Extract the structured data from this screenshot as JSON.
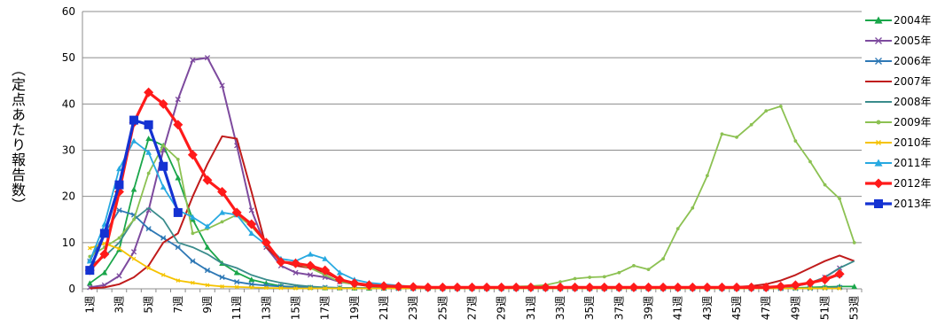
{
  "chart_data": {
    "type": "line",
    "ylabel": "（定点あたり報告数）",
    "ylim": [
      0,
      60
    ],
    "yticks": [
      0,
      10,
      20,
      30,
      40,
      50,
      60
    ],
    "grid": true,
    "legend_position": "right",
    "categories": [
      "1週",
      "2週",
      "3週",
      "4週",
      "5週",
      "6週",
      "7週",
      "8週",
      "9週",
      "10週",
      "11週",
      "12週",
      "13週",
      "14週",
      "15週",
      "16週",
      "17週",
      "18週",
      "19週",
      "20週",
      "21週",
      "22週",
      "23週",
      "24週",
      "25週",
      "26週",
      "27週",
      "28週",
      "29週",
      "30週",
      "31週",
      "32週",
      "33週",
      "34週",
      "35週",
      "36週",
      "37週",
      "38週",
      "39週",
      "40週",
      "41週",
      "42週",
      "43週",
      "44週",
      "45週",
      "46週",
      "47週",
      "48週",
      "49週",
      "50週",
      "51週",
      "52週",
      "53週"
    ],
    "tick_labels": [
      "1週",
      "3週",
      "5週",
      "7週",
      "9週",
      "11週",
      "13週",
      "15週",
      "17週",
      "19週",
      "21週",
      "23週",
      "25週",
      "27週",
      "29週",
      "31週",
      "33週",
      "35週",
      "37週",
      "39週",
      "41週",
      "43週",
      "45週",
      "47週",
      "49週",
      "51週",
      "53週"
    ],
    "series": [
      {
        "name": "2004年",
        "color": "#1aa64a",
        "marker": "triangle",
        "values": [
          1.2,
          3.5,
          8.5,
          21.5,
          32.5,
          31,
          24,
          15,
          9,
          5.5,
          3.5,
          2,
          1.2,
          0.6,
          0.4,
          0.3,
          0.2,
          0.2,
          0.15,
          0.1,
          0.1,
          0.1,
          0.1,
          0.1,
          0.1,
          0.1,
          0.1,
          0.1,
          0.1,
          0.1,
          0.1,
          0.1,
          0.1,
          0.1,
          0.1,
          0.1,
          0.1,
          0.1,
          0.1,
          0.1,
          0.1,
          0.1,
          0.1,
          0.1,
          0.1,
          0.1,
          0.1,
          0.1,
          0.2,
          0.3,
          0.4,
          0.5,
          0.5
        ]
      },
      {
        "name": "2005年",
        "color": "#7d4a9e",
        "marker": "x",
        "values": [
          0.3,
          0.8,
          2.8,
          8,
          17,
          30,
          41,
          49.5,
          50,
          44,
          31,
          17,
          9,
          5,
          3.5,
          3,
          2.5,
          1.5,
          1,
          0.6,
          0.4,
          0.3,
          0.2,
          0.15,
          0.1,
          0.1,
          0.1,
          0.1,
          0.1,
          0.1,
          0.1,
          0.1,
          0.1,
          0.1,
          0.1,
          0.1,
          0.1,
          0.1,
          0.1,
          0.1,
          0.1,
          0.1,
          0.1,
          0.1,
          0.1,
          0.1,
          0.1,
          0.3,
          0.6,
          1.2,
          2.5,
          4.5,
          null
        ]
      },
      {
        "name": "2006年",
        "color": "#2e78b5",
        "marker": "star",
        "values": [
          6,
          12,
          17,
          16,
          13,
          11,
          9,
          6,
          4,
          2.5,
          1.5,
          1,
          0.7,
          0.5,
          0.4,
          0.3,
          0.3,
          0.2,
          0.2,
          0.2,
          0.15,
          0.1,
          0.1,
          0.1,
          0.1,
          0.1,
          0.1,
          0.1,
          0.1,
          0.1,
          0.1,
          0.1,
          0.1,
          0.1,
          0.1,
          0.1,
          0.1,
          0.1,
          0.1,
          0.1,
          0.1,
          0.1,
          0.1,
          0.1,
          0.1,
          0.1,
          0.1,
          0.1,
          0.1,
          0.1,
          0.2,
          0.3,
          null
        ]
      },
      {
        "name": "2007年",
        "color": "#c01b1b",
        "marker": "none",
        "values": [
          0.1,
          0.3,
          1,
          2.5,
          5,
          10,
          12,
          20,
          27,
          33,
          32.5,
          21,
          9,
          6,
          5,
          4.5,
          3.5,
          2,
          1,
          0.6,
          0.4,
          0.3,
          0.2,
          0.15,
          0.1,
          0.1,
          0.1,
          0.1,
          0.1,
          0.1,
          0.1,
          0.1,
          0.1,
          0.1,
          0.1,
          0.1,
          0.1,
          0.1,
          0.1,
          0.1,
          0.1,
          0.2,
          0.3,
          0.3,
          0.4,
          0.6,
          1,
          1.8,
          3,
          4.5,
          6,
          7.2,
          6
        ]
      },
      {
        "name": "2008年",
        "color": "#3a8c8c",
        "marker": "none",
        "values": [
          5,
          7,
          10,
          15,
          17.5,
          15,
          10,
          9,
          7.5,
          5.5,
          4.5,
          3,
          2,
          1.3,
          0.8,
          0.5,
          0.3,
          0.2,
          0.2,
          0.15,
          0.1,
          0.1,
          0.1,
          0.1,
          0.1,
          0.1,
          0.1,
          0.1,
          0.1,
          0.1,
          0.1,
          0.1,
          0.1,
          0.1,
          0.1,
          0.1,
          0.1,
          0.1,
          0.1,
          0.1,
          0.1,
          0.1,
          0.1,
          0.1,
          0.1,
          0.1,
          0.2,
          0.3,
          0.6,
          1.3,
          2.5,
          4.5,
          6
        ]
      },
      {
        "name": "2009年",
        "color": "#8cc152",
        "marker": "circle",
        "values": [
          7,
          9,
          11,
          15,
          25,
          31,
          28,
          12,
          13,
          14.5,
          16,
          13.5,
          10,
          6,
          5.5,
          4.5,
          3,
          1.5,
          1,
          0.8,
          0.6,
          0.5,
          0.5,
          0.4,
          0.4,
          0.4,
          0.4,
          0.4,
          0.4,
          0.5,
          0.6,
          0.8,
          1.5,
          2.2,
          2.5,
          2.6,
          3.5,
          5,
          4.2,
          6.5,
          13,
          17.5,
          24.5,
          33.5,
          32.8,
          35.5,
          38.5,
          39.5,
          32,
          27.5,
          22.5,
          19.5,
          10
        ]
      },
      {
        "name": "2010年",
        "color": "#f5c300",
        "marker": "small-x",
        "values": [
          8.8,
          9.8,
          8.7,
          6.5,
          4.5,
          3,
          1.8,
          1.3,
          0.8,
          0.5,
          0.4,
          0.3,
          0.2,
          0.15,
          0.1,
          0.1,
          0.1,
          0.1,
          0.1,
          0.1,
          0.1,
          0.1,
          0.1,
          0.1,
          0.1,
          0.1,
          0.1,
          0.1,
          0.1,
          0.1,
          0.1,
          0.1,
          0.1,
          0.1,
          0.1,
          0.1,
          0.1,
          0.1,
          0.1,
          0.1,
          0.1,
          0.1,
          0.1,
          0.1,
          0.1,
          0.1,
          0.1,
          0.1,
          0.1,
          0.1,
          0.1,
          0.1,
          null
        ]
      },
      {
        "name": "2011年",
        "color": "#27a9e1",
        "marker": "triangle",
        "values": [
          6,
          14,
          26,
          32,
          29.5,
          22,
          17,
          15.5,
          13.5,
          16.5,
          16,
          12,
          9.5,
          6.5,
          6,
          7.5,
          6.5,
          3.5,
          2,
          1.3,
          1,
          0.7,
          0.5,
          0.3,
          0.2,
          0.2,
          0.2,
          0.2,
          0.2,
          0.2,
          0.2,
          0.2,
          0.2,
          0.2,
          0.2,
          0.2,
          0.2,
          0.2,
          0.2,
          0.2,
          0.2,
          0.2,
          0.2,
          0.2,
          0.2,
          0.2,
          0.2,
          0.4,
          0.7,
          1.2,
          2,
          3,
          null
        ]
      },
      {
        "name": "2012年",
        "color": "#ff1a1a",
        "marker": "diamond",
        "values": [
          4,
          7.5,
          21,
          36,
          42.5,
          40,
          35.5,
          29,
          23.5,
          21,
          16.5,
          14,
          10,
          5.8,
          5.5,
          5,
          4,
          2,
          1.2,
          0.8,
          0.6,
          0.5,
          0.4,
          0.3,
          0.3,
          0.3,
          0.3,
          0.3,
          0.3,
          0.3,
          0.3,
          0.3,
          0.3,
          0.3,
          0.3,
          0.3,
          0.3,
          0.3,
          0.3,
          0.3,
          0.3,
          0.3,
          0.3,
          0.3,
          0.3,
          0.3,
          0.3,
          0.5,
          0.8,
          1.3,
          2,
          3.2,
          null
        ]
      },
      {
        "name": "2013年",
        "color": "#1432d2",
        "marker": "square",
        "values": [
          4,
          12,
          22.5,
          36.5,
          35.5,
          26.5,
          16.5,
          null,
          null,
          null,
          null,
          null,
          null,
          null,
          null,
          null,
          null,
          null,
          null,
          null,
          null,
          null,
          null,
          null,
          null,
          null,
          null,
          null,
          null,
          null,
          null,
          null,
          null,
          null,
          null,
          null,
          null,
          null,
          null,
          null,
          null,
          null,
          null,
          null,
          null,
          null,
          null,
          null,
          null,
          null,
          null,
          null,
          null
        ]
      }
    ]
  }
}
